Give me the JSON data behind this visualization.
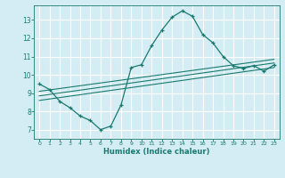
{
  "xlabel": "Humidex (Indice chaleur)",
  "bg_color": "#d4ecf3",
  "grid_color": "#ffffff",
  "line_color": "#1a7a6e",
  "xlim": [
    -0.5,
    23.5
  ],
  "ylim": [
    6.5,
    13.8
  ],
  "yticks": [
    7,
    8,
    9,
    10,
    11,
    12,
    13
  ],
  "xticks": [
    0,
    1,
    2,
    3,
    4,
    5,
    6,
    7,
    8,
    9,
    10,
    11,
    12,
    13,
    14,
    15,
    16,
    17,
    18,
    19,
    20,
    21,
    22,
    23
  ],
  "main_curve_x": [
    0,
    1,
    2,
    3,
    4,
    5,
    6,
    7,
    8,
    9,
    10,
    11,
    12,
    13,
    14,
    15,
    16,
    17,
    18,
    19,
    20,
    21,
    22,
    23
  ],
  "main_curve_y": [
    9.5,
    9.2,
    8.55,
    8.2,
    7.75,
    7.5,
    7.0,
    7.2,
    8.35,
    10.4,
    10.55,
    11.6,
    12.45,
    13.15,
    13.5,
    13.2,
    12.2,
    11.75,
    11.0,
    10.5,
    10.35,
    10.5,
    10.2,
    10.55
  ],
  "line1_x": [
    0,
    23
  ],
  "line1_y": [
    8.6,
    10.4
  ],
  "line2_x": [
    0,
    23
  ],
  "line2_y": [
    8.85,
    10.65
  ],
  "line3_x": [
    0,
    23
  ],
  "line3_y": [
    9.1,
    10.85
  ]
}
